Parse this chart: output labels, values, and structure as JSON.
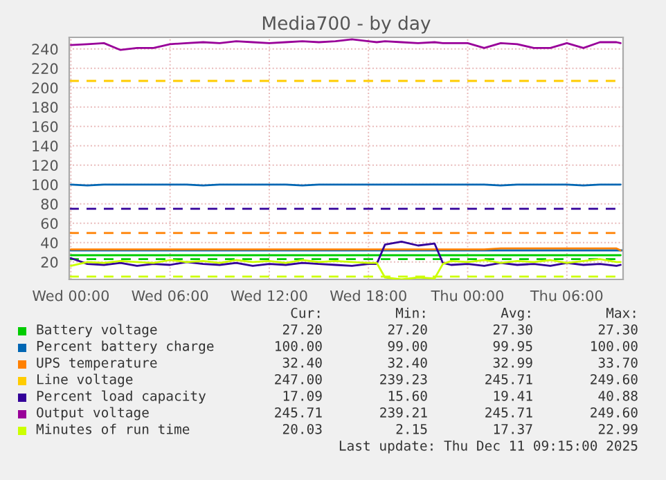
{
  "chart_data": {
    "type": "line",
    "title": "Media700 - by day",
    "x": [
      "2025-12-10T00:00",
      "2025-12-10T01:00",
      "2025-12-10T02:00",
      "2025-12-10T03:00",
      "2025-12-10T04:00",
      "2025-12-10T05:00",
      "2025-12-10T06:00",
      "2025-12-10T07:00",
      "2025-12-10T08:00",
      "2025-12-10T09:00",
      "2025-12-10T10:00",
      "2025-12-10T11:00",
      "2025-12-10T12:00",
      "2025-12-10T13:00",
      "2025-12-10T14:00",
      "2025-12-10T15:00",
      "2025-12-10T16:00",
      "2025-12-10T17:00",
      "2025-12-10T18:00",
      "2025-12-10T18:30",
      "2025-12-10T19:00",
      "2025-12-10T20:00",
      "2025-12-10T21:00",
      "2025-12-10T22:00",
      "2025-12-10T22:30",
      "2025-12-10T23:00",
      "2025-12-11T00:00",
      "2025-12-11T01:00",
      "2025-12-11T02:00",
      "2025-12-11T03:00",
      "2025-12-11T04:00",
      "2025-12-11T05:00",
      "2025-12-11T06:00",
      "2025-12-11T07:00",
      "2025-12-11T08:00",
      "2025-12-11T09:00",
      "2025-12-11T09:15"
    ],
    "xlim": [
      "2025-12-09T23:54",
      "2025-12-11T09:24"
    ],
    "xticks": [
      {
        "value": "2025-12-10T00:00",
        "label": "Wed 00:00"
      },
      {
        "value": "2025-12-10T06:00",
        "label": "Wed 06:00"
      },
      {
        "value": "2025-12-10T12:00",
        "label": "Wed 12:00"
      },
      {
        "value": "2025-12-10T18:00",
        "label": "Wed 18:00"
      },
      {
        "value": "2025-12-11T00:00",
        "label": "Thu 00:00"
      },
      {
        "value": "2025-12-11T06:00",
        "label": "Thu 06:00"
      }
    ],
    "ylim": [
      2,
      252
    ],
    "yticks": [
      20,
      40,
      60,
      80,
      100,
      120,
      140,
      160,
      180,
      200,
      220,
      240
    ],
    "grid": true,
    "legend": "bottom",
    "series": [
      {
        "name": "Battery voltage",
        "color": "#00cc00",
        "values": [
          27,
          27,
          27,
          27,
          27,
          27,
          27,
          27,
          27,
          27,
          27,
          27,
          27,
          27,
          27,
          27,
          27,
          27,
          27,
          27,
          27,
          27,
          27,
          27,
          27,
          27,
          27,
          27,
          27,
          27,
          27,
          27,
          27,
          27,
          27,
          27,
          27
        ]
      },
      {
        "name": "Percent battery charge",
        "color": "#0066b3",
        "values": [
          100,
          99,
          100,
          100,
          100,
          100,
          100,
          100,
          99,
          100,
          100,
          100,
          100,
          100,
          99,
          100,
          100,
          100,
          100,
          100,
          100,
          100,
          100,
          100,
          100,
          100,
          100,
          100,
          99,
          100,
          100,
          100,
          100,
          99,
          100,
          100,
          100
        ]
      },
      {
        "name": "UPS temperature",
        "color": "#ff8000",
        "values": [
          33,
          33,
          33,
          33,
          33,
          33,
          33,
          33,
          33,
          33,
          33,
          33,
          33,
          33,
          33,
          33,
          33,
          33,
          33,
          33,
          33,
          33,
          33,
          33,
          33,
          33,
          33,
          33,
          34,
          34,
          34,
          34,
          34,
          34,
          34,
          34,
          32
        ]
      },
      {
        "name": "Line voltage",
        "color": "#ffcc00",
        "values": [
          null,
          null,
          null,
          null,
          null,
          null,
          null,
          null,
          null,
          null,
          null,
          null,
          null,
          null,
          null,
          null,
          null,
          null,
          null,
          null,
          null,
          null,
          null,
          null,
          null,
          null,
          null,
          null,
          null,
          null,
          null,
          null,
          null,
          null,
          null,
          null,
          null
        ]
      },
      {
        "name": "Percent load capacity",
        "color": "#330099",
        "values": [
          24,
          18,
          17,
          19,
          16,
          18,
          17,
          20,
          18,
          17,
          19,
          16,
          18,
          17,
          19,
          18,
          17,
          16,
          18,
          18,
          38,
          41,
          37,
          39,
          19,
          17,
          18,
          16,
          19,
          17,
          18,
          16,
          19,
          17,
          18,
          16,
          17
        ]
      },
      {
        "name": "Output voltage",
        "color": "#990099",
        "values": [
          244,
          245,
          246,
          239,
          241,
          241,
          245,
          246,
          247,
          246,
          248,
          247,
          246,
          247,
          248,
          247,
          248,
          250,
          248,
          247,
          248,
          247,
          246,
          247,
          246,
          246,
          246,
          241,
          246,
          245,
          241,
          241,
          246,
          241,
          247,
          247,
          246
        ]
      },
      {
        "name": "Minutes of run time",
        "color": "#ccff00",
        "values": [
          16,
          20,
          19,
          21,
          20,
          19,
          22,
          20,
          21,
          19,
          22,
          20,
          21,
          19,
          22,
          20,
          21,
          20,
          19,
          19,
          4,
          2,
          4,
          3,
          18,
          21,
          20,
          22,
          19,
          21,
          20,
          22,
          19,
          21,
          23,
          20,
          20
        ]
      }
    ],
    "ref_lines": [
      {
        "axis": "y",
        "value": 207,
        "color": "#ffcc00",
        "line_style": "dashed"
      },
      {
        "axis": "y",
        "value": 75,
        "color": "#330099",
        "line_style": "dashed"
      },
      {
        "axis": "y",
        "value": 50,
        "color": "#ff8000",
        "line_style": "dashed"
      },
      {
        "axis": "y",
        "value": 32,
        "color": "#0066b3",
        "line_style": "solid"
      },
      {
        "axis": "y",
        "value": 23,
        "color": "#00cc00",
        "line_style": "dashed"
      },
      {
        "axis": "y",
        "value": 5,
        "color": "#ccff00",
        "line_style": "dashed"
      }
    ],
    "annotations": [
      "Cur:",
      "Min:",
      "Avg:",
      "Max:",
      "27.20",
      "27.20",
      "27.30",
      "27.30",
      "100.00",
      "99.00",
      "99.95",
      "100.00",
      "32.40",
      "32.40",
      "32.99",
      "33.70",
      "247.00",
      "239.23",
      "245.71",
      "249.60",
      "17.09",
      "15.60",
      "19.41",
      "40.88",
      "245.71",
      "239.21",
      "245.71",
      "249.60",
      "20.03",
      "2.15",
      "17.37",
      "22.99",
      "Last update: Thu Dec 11 09:15:00 2025"
    ]
  }
}
